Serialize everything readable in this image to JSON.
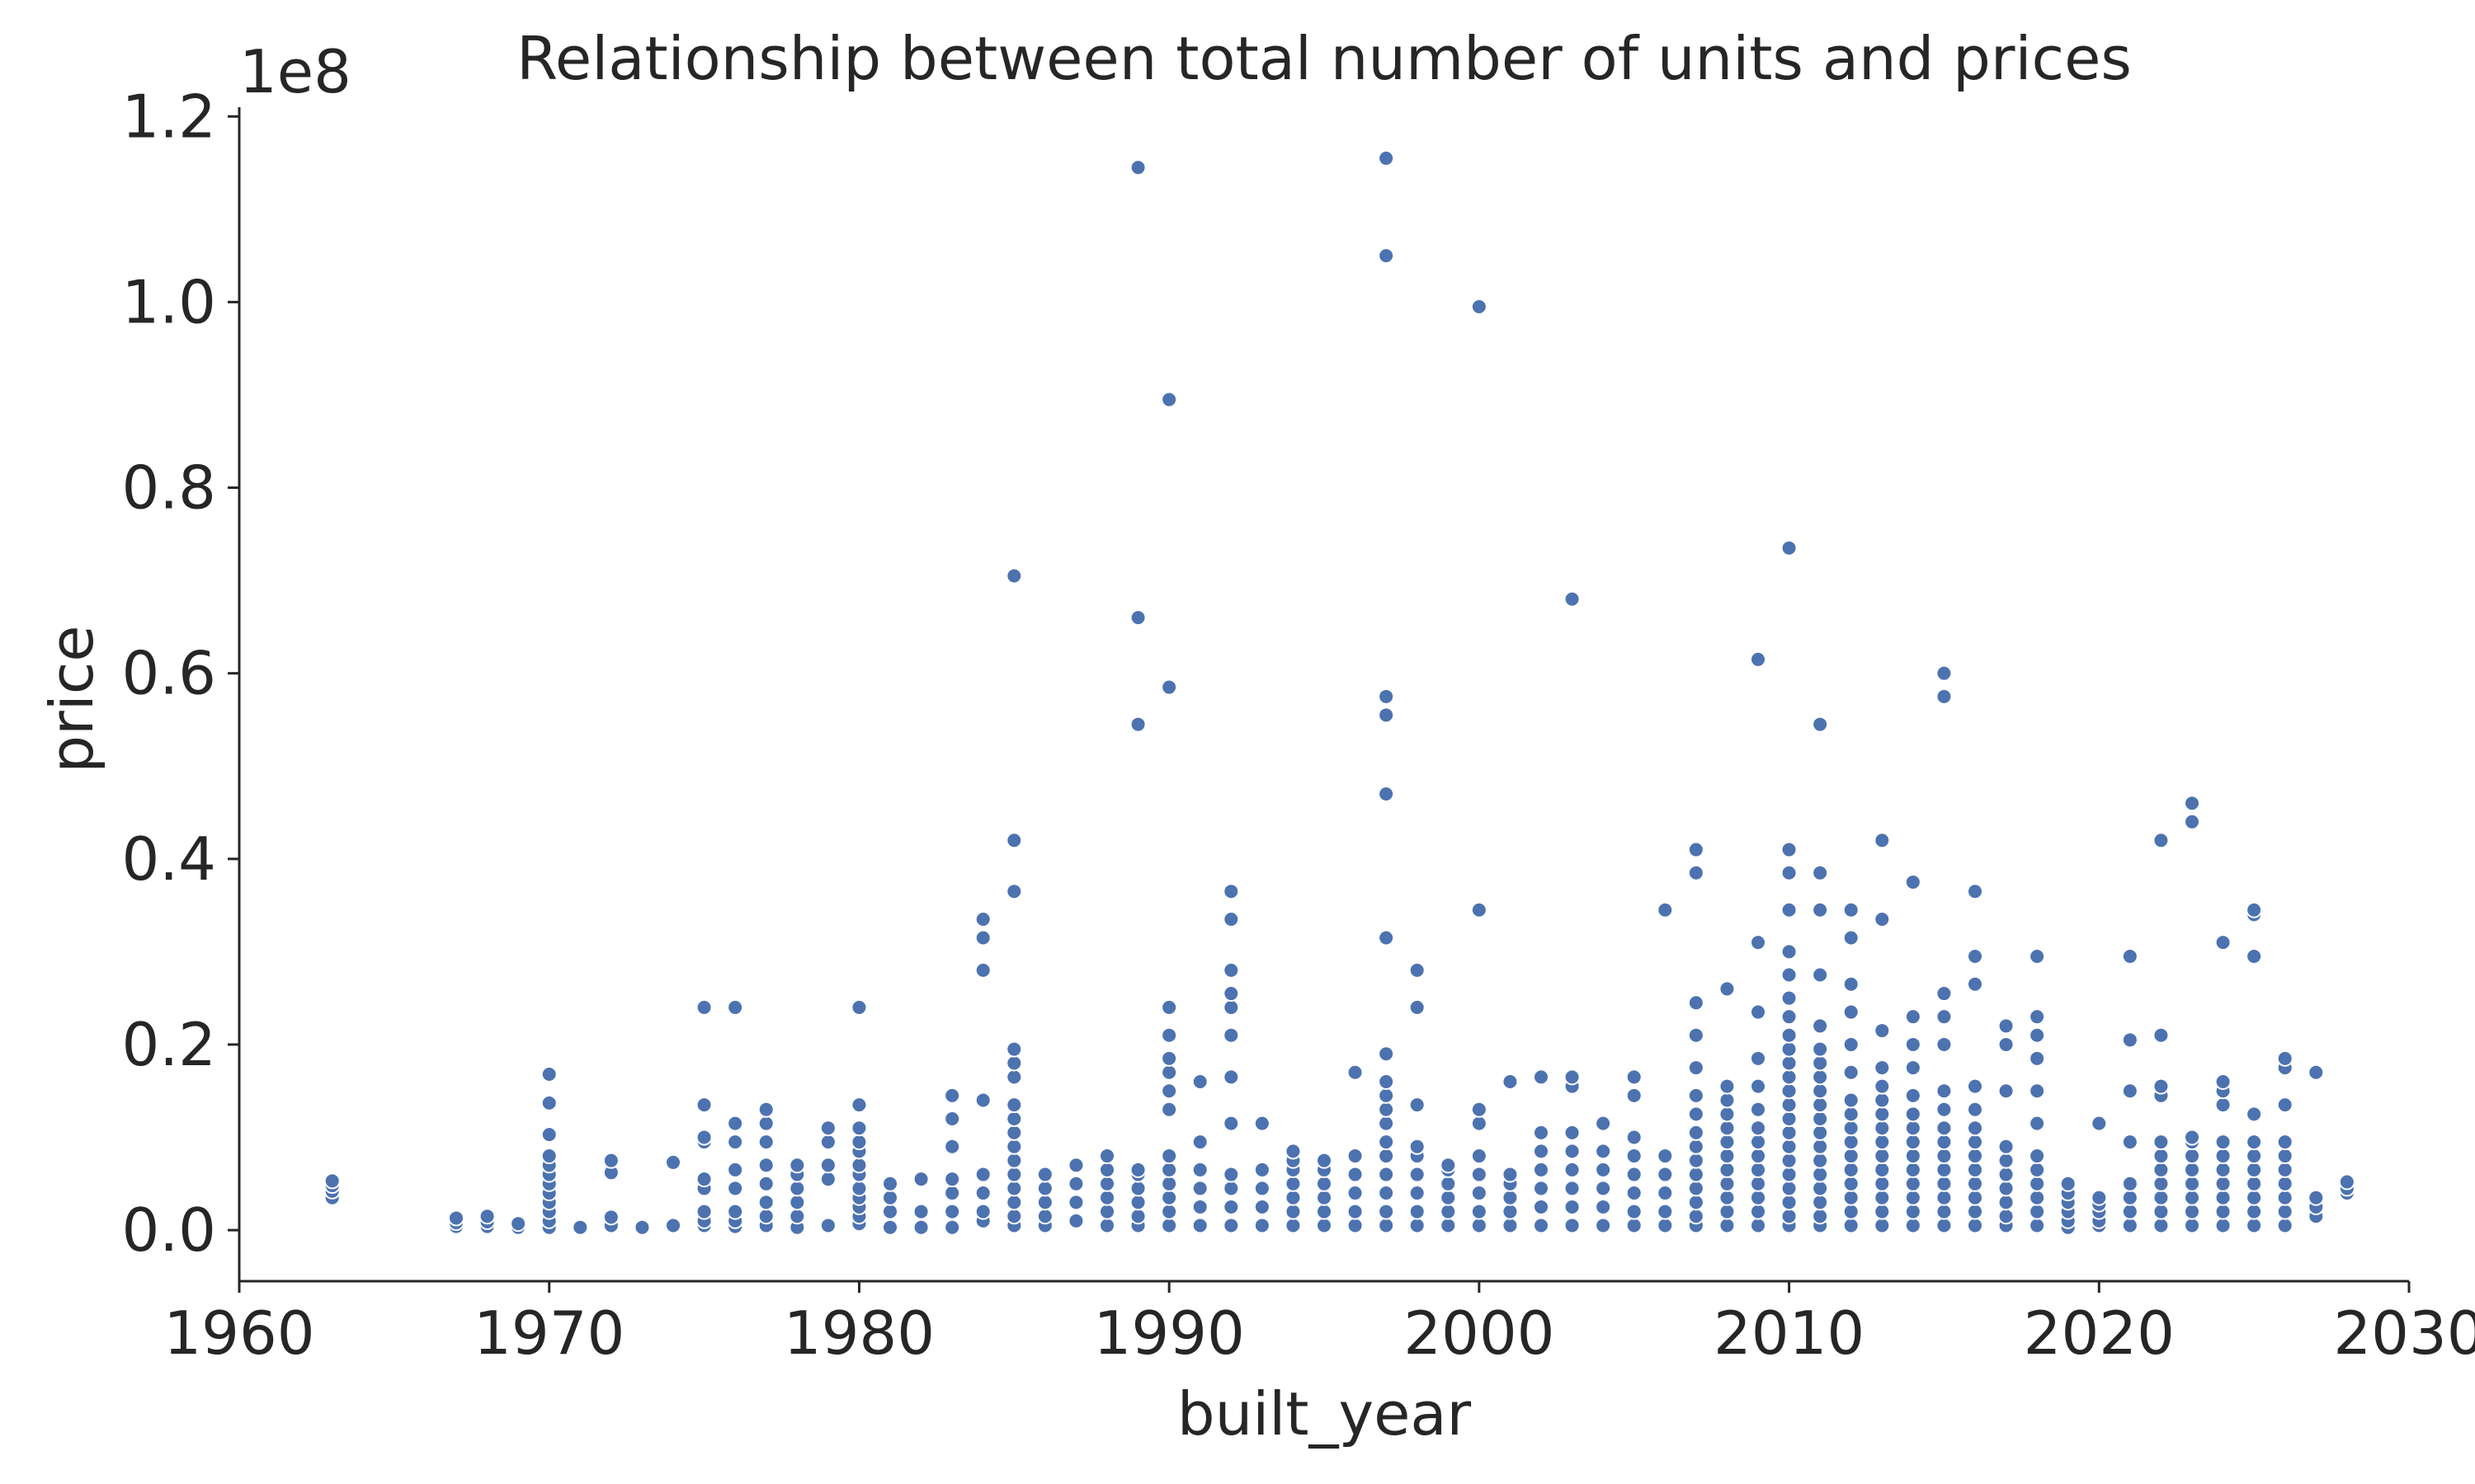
{
  "chart_data": {
    "type": "scatter",
    "title": "Relationship between total number of units and prices",
    "xlabel": "built_year",
    "ylabel": "price",
    "y_offset_label": "1e8",
    "xlim": [
      1960,
      2030
    ],
    "ylim": [
      -5500000,
      121000000
    ],
    "x_ticks": [
      1960,
      1970,
      1980,
      1990,
      2000,
      2010,
      2020,
      2030
    ],
    "x_tick_labels": [
      "1960",
      "1970",
      "1980",
      "1990",
      "2000",
      "2010",
      "2020",
      "2030"
    ],
    "y_ticks": [
      0,
      20000000,
      40000000,
      60000000,
      80000000,
      100000000,
      120000000
    ],
    "y_tick_labels": [
      "0.0",
      "0.2",
      "0.4",
      "0.6",
      "0.8",
      "1.0",
      "1.2"
    ],
    "grid": false,
    "marker_color": "#4c72b0",
    "x": [
      1963,
      1963,
      1963,
      1963,
      1967,
      1967,
      1967,
      1968,
      1968,
      1968,
      1969,
      1969,
      1970,
      1970,
      1970,
      1970,
      1970,
      1970,
      1970,
      1970,
      1970,
      1970,
      1970,
      1970,
      1971,
      1972,
      1972,
      1972,
      1972,
      1973,
      1974,
      1974,
      1975,
      1975,
      1975,
      1975,
      1975,
      1975,
      1975,
      1975,
      1975,
      1976,
      1976,
      1976,
      1976,
      1976,
      1976,
      1976,
      1976,
      1977,
      1977,
      1977,
      1977,
      1977,
      1977,
      1977,
      1977,
      1978,
      1978,
      1978,
      1978,
      1978,
      1978,
      1979,
      1979,
      1979,
      1979,
      1979,
      1980,
      1980,
      1980,
      1980,
      1980,
      1980,
      1980,
      1980,
      1980,
      1980,
      1980,
      1980,
      1981,
      1981,
      1981,
      1981,
      1982,
      1982,
      1982,
      1983,
      1983,
      1983,
      1983,
      1983,
      1983,
      1983,
      1984,
      1984,
      1984,
      1984,
      1984,
      1984,
      1984,
      1984,
      1985,
      1985,
      1985,
      1985,
      1985,
      1985,
      1985,
      1985,
      1985,
      1985,
      1985,
      1985,
      1985,
      1985,
      1985,
      1985,
      1986,
      1986,
      1986,
      1986,
      1986,
      1987,
      1987,
      1987,
      1987,
      1988,
      1988,
      1988,
      1988,
      1988,
      1988,
      1989,
      1989,
      1989,
      1989,
      1989,
      1989,
      1989,
      1989,
      1989,
      1990,
      1990,
      1990,
      1990,
      1990,
      1990,
      1990,
      1990,
      1990,
      1990,
      1990,
      1990,
      1990,
      1990,
      1991,
      1991,
      1991,
      1991,
      1991,
      1991,
      1992,
      1992,
      1992,
      1992,
      1992,
      1992,
      1992,
      1992,
      1992,
      1992,
      1992,
      1992,
      1993,
      1993,
      1993,
      1993,
      1993,
      1994,
      1994,
      1994,
      1994,
      1994,
      1994,
      1994,
      1995,
      1995,
      1995,
      1995,
      1995,
      1995,
      1996,
      1996,
      1996,
      1996,
      1996,
      1996,
      1997,
      1997,
      1997,
      1997,
      1997,
      1997,
      1997,
      1997,
      1997,
      1997,
      1997,
      1997,
      1997,
      1997,
      1997,
      1997,
      1997,
      1998,
      1998,
      1998,
      1998,
      1998,
      1998,
      1998,
      1998,
      1998,
      1999,
      1999,
      1999,
      1999,
      1999,
      1999,
      2000,
      2000,
      2000,
      2000,
      2000,
      2000,
      2000,
      2000,
      2000,
      2001,
      2001,
      2001,
      2001,
      2001,
      2001,
      2002,
      2002,
      2002,
      2002,
      2002,
      2002,
      2002,
      2003,
      2003,
      2003,
      2003,
      2003,
      2003,
      2003,
      2003,
      2003,
      2004,
      2004,
      2004,
      2004,
      2004,
      2004,
      2005,
      2005,
      2005,
      2005,
      2005,
      2005,
      2005,
      2005,
      2006,
      2006,
      2006,
      2006,
      2006,
      2006,
      2007,
      2007,
      2007,
      2007,
      2007,
      2007,
      2007,
      2007,
      2007,
      2007,
      2007,
      2007,
      2007,
      2007,
      2007,
      2008,
      2008,
      2008,
      2008,
      2008,
      2008,
      2008,
      2008,
      2008,
      2008,
      2008,
      2008,
      2009,
      2009,
      2009,
      2009,
      2009,
      2009,
      2009,
      2009,
      2009,
      2009,
      2009,
      2009,
      2009,
      2009,
      2010,
      2010,
      2010,
      2010,
      2010,
      2010,
      2010,
      2010,
      2010,
      2010,
      2010,
      2010,
      2010,
      2010,
      2010,
      2010,
      2010,
      2010,
      2010,
      2010,
      2010,
      2010,
      2010,
      2011,
      2011,
      2011,
      2011,
      2011,
      2011,
      2011,
      2011,
      2011,
      2011,
      2011,
      2011,
      2011,
      2011,
      2011,
      2011,
      2011,
      2011,
      2011,
      2012,
      2012,
      2012,
      2012,
      2012,
      2012,
      2012,
      2012,
      2012,
      2012,
      2012,
      2012,
      2012,
      2012,
      2012,
      2012,
      2013,
      2013,
      2013,
      2013,
      2013,
      2013,
      2013,
      2013,
      2013,
      2013,
      2013,
      2013,
      2013,
      2013,
      2013,
      2014,
      2014,
      2014,
      2014,
      2014,
      2014,
      2014,
      2014,
      2014,
      2014,
      2014,
      2014,
      2014,
      2014,
      2015,
      2015,
      2015,
      2015,
      2015,
      2015,
      2015,
      2015,
      2015,
      2015,
      2015,
      2015,
      2015,
      2015,
      2015,
      2016,
      2016,
      2016,
      2016,
      2016,
      2016,
      2016,
      2016,
      2016,
      2016,
      2016,
      2016,
      2016,
      2017,
      2017,
      2017,
      2017,
      2017,
      2017,
      2017,
      2017,
      2017,
      2017,
      2018,
      2018,
      2018,
      2018,
      2018,
      2018,
      2018,
      2018,
      2018,
      2018,
      2018,
      2018,
      2019,
      2019,
      2019,
      2019,
      2019,
      2019,
      2020,
      2020,
      2020,
      2020,
      2020,
      2020,
      2021,
      2021,
      2021,
      2021,
      2021,
      2021,
      2021,
      2021,
      2022,
      2022,
      2022,
      2022,
      2022,
      2022,
      2022,
      2022,
      2022,
      2022,
      2022,
      2023,
      2023,
      2023,
      2023,
      2023,
      2023,
      2023,
      2023,
      2023,
      2023,
      2024,
      2024,
      2024,
      2024,
      2024,
      2024,
      2024,
      2024,
      2024,
      2024,
      2024,
      2025,
      2025,
      2025,
      2025,
      2025,
      2025,
      2025,
      2025,
      2025,
      2025,
      2025,
      2026,
      2026,
      2026,
      2026,
      2026,
      2026,
      2026,
      2026,
      2026,
      2026,
      2027,
      2027,
      2027,
      2027,
      2028,
      2028,
      2028
    ],
    "y": [
      3500000,
      4200000,
      4800000,
      5300000,
      400000,
      800000,
      1300000,
      400000,
      900000,
      1500000,
      300000,
      700000,
      300000,
      1000000,
      2000000,
      3000000,
      4000000,
      5000000,
      6000000,
      7000000,
      8000000,
      10300000,
      13700000,
      16800000,
      300000,
      500000,
      1400000,
      6200000,
      7500000,
      300000,
      500000,
      7300000,
      500000,
      1000000,
      2000000,
      4500000,
      5500000,
      9500000,
      10000000,
      13500000,
      24000000,
      400000,
      1000000,
      2000000,
      4500000,
      6500000,
      9500000,
      11500000,
      24000000,
      500000,
      1500000,
      3000000,
      5000000,
      7000000,
      9500000,
      11500000,
      13000000,
      300000,
      1500000,
      3000000,
      4500000,
      6000000,
      7000000,
      500000,
      5500000,
      7000000,
      9500000,
      11000000,
      700000,
      1500000,
      2500000,
      3500000,
      4500000,
      6000000,
      7000000,
      8500000,
      9500000,
      11000000,
      13500000,
      24000000,
      300000,
      2000000,
      3500000,
      5000000,
      300000,
      2000000,
      5500000,
      300000,
      2000000,
      4000000,
      5500000,
      9000000,
      12000000,
      14500000,
      1000000,
      2000000,
      4000000,
      6000000,
      14000000,
      28000000,
      31500000,
      33500000,
      500000,
      1500000,
      3000000,
      4500000,
      6000000,
      7500000,
      9000000,
      10500000,
      12000000,
      13500000,
      16500000,
      18000000,
      19500000,
      36500000,
      42000000,
      70500000,
      500000,
      1500000,
      3000000,
      4500000,
      6000000,
      1000000,
      3000000,
      5000000,
      7000000,
      500000,
      2000000,
      3500000,
      5000000,
      6500000,
      8000000,
      500000,
      1500000,
      3000000,
      4500000,
      6000000,
      6500000,
      54500000,
      66000000,
      114500000,
      500000,
      2000000,
      3500000,
      5000000,
      6500000,
      8000000,
      13000000,
      15000000,
      17000000,
      18500000,
      21000000,
      24000000,
      58500000,
      89500000,
      500000,
      2500000,
      4500000,
      6500000,
      9500000,
      16000000,
      500000,
      2500000,
      4500000,
      6000000,
      11500000,
      16500000,
      21000000,
      24000000,
      25500000,
      28000000,
      33500000,
      36500000,
      500000,
      2500000,
      4500000,
      6500000,
      11500000,
      500000,
      2000000,
      3500000,
      5000000,
      6500000,
      7500000,
      8500000,
      500000,
      2000000,
      3500000,
      5000000,
      6500000,
      7500000,
      500000,
      2000000,
      4000000,
      6000000,
      8000000,
      17000000,
      500000,
      2000000,
      4000000,
      6000000,
      8000000,
      9500000,
      11500000,
      13000000,
      14500000,
      16000000,
      19000000,
      31500000,
      47000000,
      55500000,
      57500000,
      105000000,
      115500000,
      500000,
      2000000,
      4000000,
      6000000,
      8000000,
      9000000,
      13500000,
      24000000,
      28000000,
      500000,
      2000000,
      3500000,
      5000000,
      6500000,
      7000000,
      500000,
      2000000,
      4000000,
      6000000,
      8000000,
      11500000,
      13000000,
      34500000,
      99500000,
      500000,
      2000000,
      3500000,
      5000000,
      6000000,
      16000000,
      500000,
      2500000,
      4500000,
      6500000,
      8500000,
      10500000,
      16500000,
      500000,
      2500000,
      4500000,
      6500000,
      8500000,
      10500000,
      15500000,
      16500000,
      68000000,
      500000,
      2500000,
      4500000,
      6500000,
      8500000,
      11500000,
      500000,
      2000000,
      4000000,
      6000000,
      8000000,
      10000000,
      14500000,
      16500000,
      500000,
      2000000,
      4000000,
      6000000,
      8000000,
      34500000,
      500000,
      1500000,
      3000000,
      4500000,
      6000000,
      7500000,
      9000000,
      10500000,
      12500000,
      14500000,
      17500000,
      21000000,
      24500000,
      38500000,
      41000000,
      500000,
      2000000,
      3500000,
      5000000,
      6500000,
      8000000,
      9500000,
      11000000,
      12500000,
      14000000,
      15500000,
      26000000,
      500000,
      2000000,
      3500000,
      5000000,
      6500000,
      8000000,
      9500000,
      11000000,
      13000000,
      15500000,
      18500000,
      23500000,
      31000000,
      61500000,
      500000,
      1500000,
      3000000,
      4500000,
      6000000,
      7500000,
      9000000,
      10500000,
      12000000,
      13500000,
      15000000,
      16500000,
      18000000,
      19500000,
      21000000,
      23000000,
      25000000,
      27500000,
      30000000,
      34500000,
      38500000,
      41000000,
      73500000,
      500000,
      1500000,
      3000000,
      4500000,
      6000000,
      7500000,
      9000000,
      10500000,
      12000000,
      13500000,
      15000000,
      16500000,
      18000000,
      19500000,
      22000000,
      27500000,
      34500000,
      38500000,
      54500000,
      500000,
      2000000,
      3500000,
      5000000,
      6500000,
      8000000,
      9500000,
      11000000,
      12500000,
      14000000,
      17000000,
      20000000,
      23500000,
      26500000,
      31500000,
      34500000,
      500000,
      2000000,
      3500000,
      5000000,
      6500000,
      8000000,
      9500000,
      11000000,
      12500000,
      14000000,
      15500000,
      17500000,
      21500000,
      33500000,
      42000000,
      500000,
      2000000,
      3500000,
      5000000,
      6500000,
      8000000,
      9500000,
      11000000,
      12500000,
      14500000,
      17500000,
      20000000,
      23000000,
      37500000,
      500000,
      2000000,
      3500000,
      5000000,
      6500000,
      8000000,
      9500000,
      11000000,
      13000000,
      15000000,
      20000000,
      23000000,
      25500000,
      57500000,
      60000000,
      500000,
      2000000,
      3500000,
      5000000,
      6500000,
      8000000,
      9500000,
      11000000,
      13000000,
      15500000,
      26500000,
      29500000,
      36500000,
      500000,
      1500000,
      3000000,
      4500000,
      6000000,
      7500000,
      9000000,
      15000000,
      20000000,
      22000000,
      500000,
      2000000,
      3500000,
      5000000,
      6500000,
      8000000,
      11500000,
      15000000,
      18500000,
      21000000,
      23000000,
      29500000,
      300000,
      1000000,
      2000000,
      3000000,
      4000000,
      5000000,
      500000,
      1000000,
      2000000,
      2800000,
      3500000,
      11500000,
      500000,
      2000000,
      3500000,
      5000000,
      9500000,
      15000000,
      20500000,
      29500000,
      500000,
      2000000,
      3500000,
      5000000,
      6500000,
      8000000,
      9500000,
      14500000,
      15500000,
      21000000,
      42000000,
      500000,
      2000000,
      3500000,
      5000000,
      6500000,
      8000000,
      9500000,
      10000000,
      44000000,
      46000000,
      500000,
      2000000,
      3500000,
      5000000,
      6500000,
      8000000,
      9500000,
      13500000,
      15000000,
      16000000,
      31000000,
      500000,
      2000000,
      3500000,
      5000000,
      6500000,
      8000000,
      9500000,
      12500000,
      29500000,
      34000000,
      34500000,
      500000,
      2000000,
      3500000,
      5000000,
      6500000,
      8000000,
      9500000,
      13500000,
      17500000,
      18500000,
      1500000,
      2500000,
      3500000,
      17000000,
      4000000,
      4500000,
      5200000
    ]
  }
}
